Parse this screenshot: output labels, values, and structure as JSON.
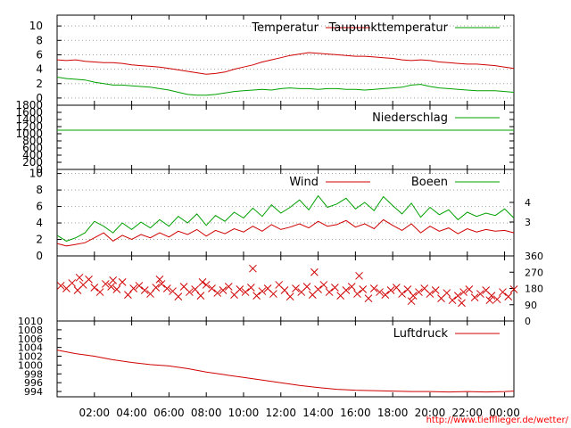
{
  "colors": {
    "red": "#d00000",
    "green": "#00a000",
    "frame": "#000000",
    "credit": "#ff0000"
  },
  "chart_data": [
    {
      "type": "line",
      "id": "temperature",
      "ylim": [
        -1,
        11.5
      ],
      "y_ticks": [
        "0",
        "2",
        "4",
        "6",
        "8",
        "10"
      ],
      "x_range": [
        0,
        24.5
      ],
      "grid": true,
      "legend_position": "top-right",
      "series": [
        {
          "name": "Temperatur",
          "color": "#d00000",
          "x": [
            0,
            0.5,
            1,
            1.5,
            2,
            2.5,
            3,
            3.5,
            4,
            4.5,
            5,
            5.5,
            6,
            6.5,
            7,
            7.5,
            8,
            8.5,
            9,
            9.5,
            10,
            10.5,
            11,
            11.5,
            12,
            12.5,
            13,
            13.5,
            14,
            14.5,
            15,
            15.5,
            16,
            16.5,
            17,
            17.5,
            18,
            18.5,
            19,
            19.5,
            20,
            20.5,
            21,
            21.5,
            22,
            22.5,
            23,
            23.5,
            24,
            24.5
          ],
          "values": [
            5.3,
            5.2,
            5.3,
            5.1,
            5.0,
            4.9,
            4.9,
            4.8,
            4.6,
            4.5,
            4.4,
            4.3,
            4.1,
            3.9,
            3.7,
            3.5,
            3.3,
            3.4,
            3.6,
            4.0,
            4.3,
            4.6,
            5.0,
            5.3,
            5.6,
            5.9,
            6.1,
            6.3,
            6.2,
            6.1,
            6.0,
            5.9,
            5.8,
            5.8,
            5.7,
            5.6,
            5.5,
            5.3,
            5.2,
            5.3,
            5.2,
            5.0,
            4.9,
            4.8,
            4.7,
            4.7,
            4.6,
            4.5,
            4.3,
            4.1
          ]
        },
        {
          "name": "Taupunkttemperatur",
          "color": "#00a000",
          "x": [
            0,
            0.5,
            1,
            1.5,
            2,
            2.5,
            3,
            3.5,
            4,
            4.5,
            5,
            5.5,
            6,
            6.5,
            7,
            7.5,
            8,
            8.5,
            9,
            9.5,
            10,
            10.5,
            11,
            11.5,
            12,
            12.5,
            13,
            13.5,
            14,
            14.5,
            15,
            15.5,
            16,
            16.5,
            17,
            17.5,
            18,
            18.5,
            19,
            19.5,
            20,
            20.5,
            21,
            21.5,
            22,
            22.5,
            23,
            23.5,
            24,
            24.5
          ],
          "values": [
            2.9,
            2.7,
            2.6,
            2.5,
            2.2,
            2.0,
            1.8,
            1.8,
            1.7,
            1.6,
            1.5,
            1.3,
            1.1,
            0.8,
            0.5,
            0.4,
            0.4,
            0.5,
            0.7,
            0.9,
            1.0,
            1.1,
            1.2,
            1.1,
            1.3,
            1.4,
            1.3,
            1.3,
            1.2,
            1.3,
            1.3,
            1.2,
            1.2,
            1.1,
            1.2,
            1.3,
            1.4,
            1.5,
            1.8,
            1.9,
            1.6,
            1.4,
            1.3,
            1.2,
            1.1,
            1.0,
            1.0,
            1.0,
            0.9,
            0.8
          ]
        }
      ]
    },
    {
      "type": "line",
      "id": "precipitation",
      "ylim": [
        0,
        1800
      ],
      "y_ticks": [
        "0",
        "200",
        "400",
        "600",
        "800",
        "1000",
        "1200",
        "1400",
        "1600",
        "1800"
      ],
      "x_range": [
        0,
        24.5
      ],
      "legend_position": "top-right",
      "series": [
        {
          "name": "Niederschlag",
          "color": "#00a000",
          "x": [
            0,
            24.5
          ],
          "values": [
            1100,
            1100
          ]
        }
      ]
    },
    {
      "type": "line",
      "id": "wind",
      "ylim": [
        0,
        10.5
      ],
      "y_ticks": [
        "0",
        "2",
        "4",
        "6",
        "8",
        "10"
      ],
      "y2_ticks": [
        "3",
        "4"
      ],
      "x_range": [
        0,
        24.5
      ],
      "grid": true,
      "legend_position": "top-right",
      "series": [
        {
          "name": "Wind",
          "color": "#d00000",
          "x": [
            0,
            0.5,
            1,
            1.5,
            2,
            2.5,
            3,
            3.5,
            4,
            4.5,
            5,
            5.5,
            6,
            6.5,
            7,
            7.5,
            8,
            8.5,
            9,
            9.5,
            10,
            10.5,
            11,
            11.5,
            12,
            12.5,
            13,
            13.5,
            14,
            14.5,
            15,
            15.5,
            16,
            16.5,
            17,
            17.5,
            18,
            18.5,
            19,
            19.5,
            20,
            20.5,
            21,
            21.5,
            22,
            22.5,
            23,
            23.5,
            24,
            24.5
          ],
          "values": [
            1.5,
            1.2,
            1.4,
            1.6,
            2.2,
            2.8,
            1.8,
            2.5,
            2.0,
            2.6,
            2.2,
            2.8,
            2.3,
            3.0,
            2.6,
            3.2,
            2.4,
            3.1,
            2.7,
            3.3,
            2.9,
            3.6,
            3.0,
            3.8,
            3.2,
            3.5,
            3.9,
            3.4,
            4.2,
            3.6,
            3.8,
            4.3,
            3.5,
            3.9,
            3.3,
            4.4,
            3.7,
            3.1,
            3.9,
            2.8,
            3.6,
            3.0,
            3.4,
            2.7,
            3.3,
            2.9,
            3.2,
            3.0,
            3.1,
            2.8
          ]
        },
        {
          "name": "Boeen",
          "color": "#00a000",
          "x": [
            0,
            0.5,
            1,
            1.5,
            2,
            2.5,
            3,
            3.5,
            4,
            4.5,
            5,
            5.5,
            6,
            6.5,
            7,
            7.5,
            8,
            8.5,
            9,
            9.5,
            10,
            10.5,
            11,
            11.5,
            12,
            12.5,
            13,
            13.5,
            14,
            14.5,
            15,
            15.5,
            16,
            16.5,
            17,
            17.5,
            18,
            18.5,
            19,
            19.5,
            20,
            20.5,
            21,
            21.5,
            22,
            22.5,
            23,
            23.5,
            24,
            24.5
          ],
          "values": [
            2.5,
            1.8,
            2.2,
            2.8,
            4.2,
            3.6,
            2.8,
            4.0,
            3.2,
            4.1,
            3.4,
            4.4,
            3.6,
            4.8,
            4.0,
            5.1,
            3.7,
            4.9,
            4.2,
            5.3,
            4.6,
            5.8,
            4.8,
            6.2,
            5.2,
            5.9,
            6.8,
            5.6,
            7.3,
            5.9,
            6.3,
            7.0,
            5.7,
            6.5,
            5.5,
            7.2,
            6.1,
            5.1,
            6.4,
            4.7,
            5.9,
            5.0,
            5.6,
            4.4,
            5.3,
            4.8,
            5.2,
            4.9,
            5.7,
            4.6
          ]
        }
      ]
    },
    {
      "type": "scatter",
      "id": "wind-direction",
      "ylim": [
        0,
        360
      ],
      "y2_ticks": [
        "0",
        "90",
        "180",
        "270",
        "360"
      ],
      "x_range": [
        0,
        24.5
      ],
      "series": [
        {
          "name": "",
          "color": "#d00000",
          "marker": "x",
          "x": [
            0.2,
            0.5,
            0.8,
            1.1,
            1.4,
            1.7,
            2.0,
            2.3,
            2.6,
            2.9,
            3.2,
            3.5,
            3.8,
            4.1,
            4.4,
            4.7,
            5.0,
            5.3,
            5.6,
            5.9,
            6.2,
            6.5,
            6.8,
            7.1,
            7.4,
            7.7,
            8.0,
            8.3,
            8.6,
            8.9,
            9.2,
            9.5,
            9.8,
            10.1,
            10.4,
            10.7,
            11.0,
            11.3,
            11.6,
            11.9,
            12.2,
            12.5,
            12.8,
            13.1,
            13.4,
            13.7,
            14.0,
            14.3,
            14.6,
            14.9,
            15.2,
            15.5,
            15.8,
            16.1,
            16.4,
            16.7,
            17.0,
            17.3,
            17.6,
            17.9,
            18.2,
            18.5,
            18.8,
            19.1,
            19.4,
            19.7,
            20.0,
            20.3,
            20.6,
            20.9,
            21.2,
            21.5,
            21.8,
            22.1,
            22.4,
            22.7,
            23.0,
            23.3,
            23.6,
            23.9,
            24.2,
            24.5,
            1.2,
            3.0,
            5.5,
            7.8,
            10.5,
            13.8,
            16.2,
            19.0,
            21.7,
            23.2
          ],
          "values": [
            195,
            180,
            210,
            170,
            200,
            230,
            185,
            160,
            205,
            190,
            175,
            215,
            145,
            180,
            195,
            170,
            150,
            185,
            205,
            180,
            165,
            135,
            190,
            160,
            175,
            140,
            200,
            180,
            155,
            170,
            190,
            145,
            175,
            160,
            185,
            140,
            165,
            180,
            150,
            200,
            170,
            135,
            180,
            160,
            190,
            145,
            175,
            200,
            160,
            185,
            140,
            170,
            190,
            150,
            175,
            125,
            180,
            160,
            145,
            170,
            185,
            150,
            175,
            140,
            160,
            180,
            150,
            170,
            125,
            155,
            115,
            140,
            160,
            175,
            130,
            150,
            170,
            140,
            120,
            160,
            135,
            175,
            240,
            225,
            230,
            215,
            290,
            270,
            250,
            110,
            100,
            115
          ]
        }
      ]
    },
    {
      "type": "line",
      "id": "pressure",
      "ylim": [
        992.8,
        1010
      ],
      "y_ticks": [
        "994",
        "996",
        "998",
        "1000",
        "1002",
        "1004",
        "1006",
        "1008",
        "1010"
      ],
      "x_range": [
        0,
        24.5
      ],
      "x_ticks": [
        2,
        4,
        6,
        8,
        10,
        12,
        14,
        16,
        18,
        20,
        22,
        24
      ],
      "x_tick_labels": [
        "02:00",
        "04:00",
        "06:00",
        "08:00",
        "10:00",
        "12:00",
        "14:00",
        "16:00",
        "18:00",
        "20:00",
        "22:00",
        "00:00"
      ],
      "legend_position": "top-right",
      "series": [
        {
          "name": "Luftdruck",
          "color": "#d00000",
          "x": [
            0,
            1,
            2,
            3,
            4,
            5,
            6,
            7,
            8,
            9,
            10,
            11,
            12,
            13,
            14,
            15,
            16,
            17,
            18,
            19,
            20,
            21,
            22,
            23,
            24,
            24.5
          ],
          "values": [
            1003.4,
            1002.6,
            1002.0,
            1001.2,
            1000.6,
            1000.1,
            999.8,
            999.2,
            998.4,
            997.8,
            997.2,
            996.6,
            996.0,
            995.4,
            994.9,
            994.5,
            994.3,
            994.2,
            994.1,
            994.0,
            994.0,
            993.9,
            994.0,
            993.9,
            994.0,
            994.1
          ]
        }
      ]
    }
  ],
  "footer": {
    "credit": "http://www.tiefflieger.de/wetter/"
  }
}
